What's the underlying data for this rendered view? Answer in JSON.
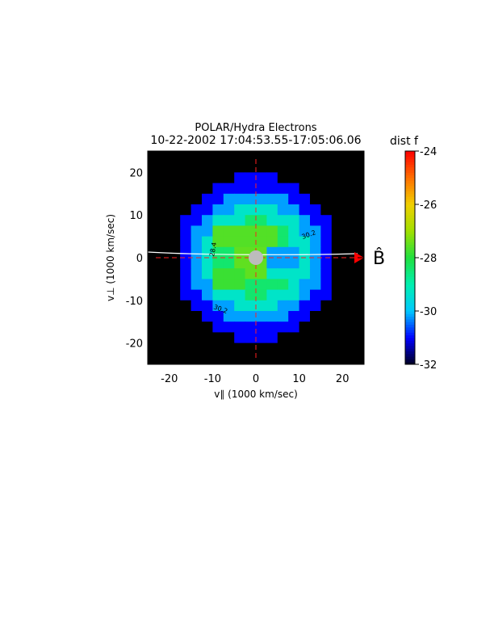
{
  "chart_data": {
    "type": "heatmap",
    "title": "POLAR/Hydra Electrons",
    "subtitle": "10-22-2002 17:04:53.55-17:05:06.06",
    "colorbar_label": "dist f",
    "xlabel": "v∥ (1000 km/sec)",
    "ylabel": "v⊥ (1000 km/sec)",
    "field_label": "B̂",
    "contour_labels": [
      "30.2",
      "28.4",
      "30.2"
    ],
    "xlim": [
      -25,
      25
    ],
    "ylim": [
      -25,
      25
    ],
    "xticks": [
      -20,
      -10,
      0,
      10,
      20
    ],
    "yticks": [
      -20,
      -10,
      0,
      10,
      20
    ],
    "zlim": [
      -32,
      -24
    ],
    "zticks": [
      -32,
      -30,
      -28,
      -26,
      -24
    ],
    "colorscale": [
      "#000020",
      "#0000ff",
      "#00c8ff",
      "#00f0b0",
      "#20e040",
      "#a0e000",
      "#f0d000",
      "#ff7000",
      "#ff0000"
    ],
    "below_color": "#000000",
    "z": [
      [
        -33,
        -33,
        -33,
        -33,
        -33,
        -33,
        -33,
        -33,
        -33,
        -33,
        -33,
        -33,
        -33,
        -33,
        -33,
        -33,
        -33,
        -33,
        -33,
        -33
      ],
      [
        -33,
        -33,
        -33,
        -33,
        -33,
        -33,
        -33,
        -33,
        -33,
        -33,
        -33,
        -33,
        -33,
        -33,
        -33,
        -33,
        -33,
        -33,
        -33,
        -33
      ],
      [
        -33,
        -33,
        -33,
        -33,
        -33,
        -33,
        -33,
        -33,
        -31,
        -31,
        -31,
        -31,
        -33,
        -33,
        -33,
        -33,
        -33,
        -33,
        -33,
        -33
      ],
      [
        -33,
        -33,
        -33,
        -33,
        -33,
        -33,
        -31,
        -31,
        -31,
        -31,
        -31,
        -31,
        -31,
        -31,
        -33,
        -33,
        -33,
        -33,
        -33,
        -33
      ],
      [
        -33,
        -33,
        -33,
        -33,
        -33,
        -31,
        -31,
        -30.2,
        -30.2,
        -30.2,
        -30.2,
        -30.2,
        -30.2,
        -31,
        -31,
        -33,
        -33,
        -33,
        -33,
        -33
      ],
      [
        -33,
        -33,
        -33,
        -33,
        -31,
        -31,
        -30.2,
        -30.2,
        -29.3,
        -29.3,
        -29.3,
        -29.3,
        -30.2,
        -30.2,
        -31,
        -31,
        -33,
        -33,
        -33,
        -33
      ],
      [
        -33,
        -33,
        -33,
        -31,
        -31,
        -30.2,
        -29.3,
        -29.3,
        -29.3,
        -28.4,
        -28.4,
        -29.3,
        -29.3,
        -29.3,
        -30.2,
        -31,
        -31,
        -33,
        -33,
        -33
      ],
      [
        -33,
        -33,
        -33,
        -31,
        -30.2,
        -30.2,
        -27.6,
        -27.6,
        -27.6,
        -27.6,
        -27.6,
        -27.6,
        -28.4,
        -29.3,
        -30.2,
        -30.2,
        -31,
        -33,
        -33,
        -33
      ],
      [
        -33,
        -33,
        -33,
        -31,
        -30.2,
        -29.3,
        -27.6,
        -27.6,
        -27.6,
        -27.6,
        -27.6,
        -27.6,
        -28.4,
        -29.3,
        -29.3,
        -30.2,
        -31,
        -33,
        -33,
        -33
      ],
      [
        -33,
        -33,
        -33,
        -31,
        -30.2,
        -29.3,
        -28.4,
        -28.4,
        -27.5,
        -27.5,
        -27.5,
        -30.2,
        -30.2,
        -30.2,
        -29.3,
        -30.2,
        -31,
        -33,
        -33,
        -33
      ],
      [
        -33,
        -33,
        -33,
        -31,
        -30.2,
        -29.3,
        -28.4,
        -28.4,
        -27.5,
        -27.5,
        -27.5,
        -30.2,
        -30.2,
        -30.2,
        -29.3,
        -30.2,
        -31,
        -33,
        -33,
        -33
      ],
      [
        -33,
        -33,
        -33,
        -31,
        -30.2,
        -29.3,
        -27.8,
        -27.8,
        -27.8,
        -27.5,
        -27.5,
        -29.3,
        -29.3,
        -29.3,
        -29.3,
        -30.2,
        -31,
        -33,
        -33,
        -33
      ],
      [
        -33,
        -33,
        -33,
        -31,
        -30.2,
        -30.2,
        -27.8,
        -27.8,
        -27.8,
        -28.4,
        -28.4,
        -28.4,
        -28.4,
        -29.3,
        -30.2,
        -30.2,
        -31,
        -33,
        -33,
        -33
      ],
      [
        -33,
        -33,
        -33,
        -31,
        -31,
        -30.2,
        -29.3,
        -29.3,
        -29.3,
        -28.4,
        -28.4,
        -29.3,
        -29.3,
        -29.3,
        -30.2,
        -31,
        -31,
        -33,
        -33,
        -33
      ],
      [
        -33,
        -33,
        -33,
        -33,
        -31,
        -31,
        -30.2,
        -30.2,
        -29.3,
        -29.3,
        -29.3,
        -29.3,
        -30.2,
        -30.2,
        -31,
        -31,
        -33,
        -33,
        -33,
        -33
      ],
      [
        -33,
        -33,
        -33,
        -33,
        -33,
        -31,
        -31,
        -30.2,
        -30.2,
        -30.2,
        -30.2,
        -30.2,
        -30.2,
        -31,
        -31,
        -33,
        -33,
        -33,
        -33,
        -33
      ],
      [
        -33,
        -33,
        -33,
        -33,
        -33,
        -33,
        -31,
        -31,
        -31,
        -31,
        -31,
        -31,
        -31,
        -31,
        -33,
        -33,
        -33,
        -33,
        -33,
        -33
      ],
      [
        -33,
        -33,
        -33,
        -33,
        -33,
        -33,
        -33,
        -33,
        -31,
        -31,
        -31,
        -31,
        -33,
        -33,
        -33,
        -33,
        -33,
        -33,
        -33,
        -33
      ],
      [
        -33,
        -33,
        -33,
        -33,
        -33,
        -33,
        -33,
        -33,
        -33,
        -33,
        -33,
        -33,
        -33,
        -33,
        -33,
        -33,
        -33,
        -33,
        -33,
        -33
      ],
      [
        -33,
        -33,
        -33,
        -33,
        -33,
        -33,
        -33,
        -33,
        -33,
        -33,
        -33,
        -33,
        -33,
        -33,
        -33,
        -33,
        -33,
        -33,
        -33,
        -33
      ]
    ]
  }
}
